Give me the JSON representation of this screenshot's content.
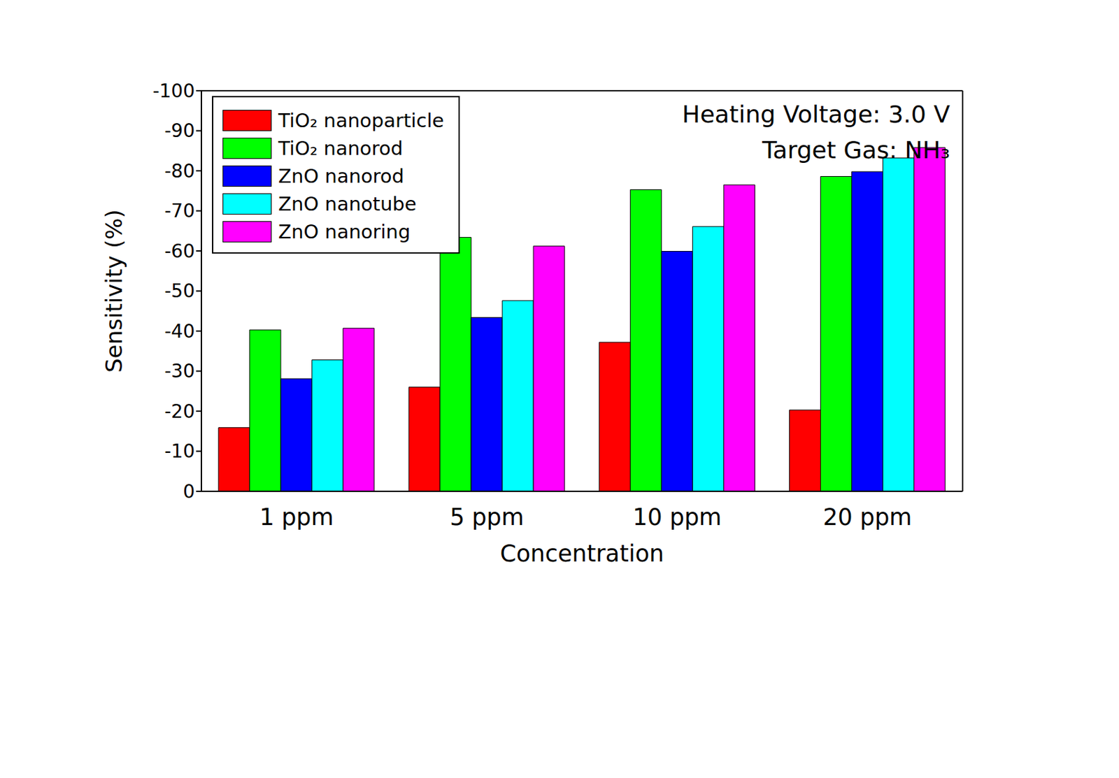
{
  "chart_data": {
    "type": "bar",
    "x_label": "Concentration",
    "y_label": "Sensitivity (%)",
    "annotations": [
      "Heating Voltage: 3.0 V",
      "Target Gas: NH₃"
    ],
    "categories": [
      "1 ppm",
      "5 ppm",
      "10 ppm",
      "20 ppm"
    ],
    "series": [
      {
        "name": "TiO₂ nanoparticle",
        "color": "#ff0000",
        "values": [
          -15.9,
          -26.0,
          -37.2,
          -20.3
        ]
      },
      {
        "name": "TiO₂ nanorod",
        "color": "#00ff00",
        "values": [
          -40.3,
          -63.4,
          -75.3,
          -78.6
        ]
      },
      {
        "name": "ZnO nanorod",
        "color": "#0000ff",
        "values": [
          -28.1,
          -43.4,
          -59.9,
          -79.8
        ]
      },
      {
        "name": "ZnO nanotube",
        "color": "#00ffff",
        "values": [
          -32.8,
          -47.6,
          -66.1,
          -83.2
        ]
      },
      {
        "name": "ZnO nanoring",
        "color": "#ff00ff",
        "values": [
          -40.7,
          -61.2,
          -76.5,
          -85.8
        ]
      }
    ],
    "ylim": [
      0,
      -100
    ],
    "yticks": [
      0,
      -10,
      -20,
      -30,
      -40,
      -50,
      -60,
      -70,
      -80,
      -90,
      -100
    ],
    "grid": false,
    "legend": "upper left"
  }
}
